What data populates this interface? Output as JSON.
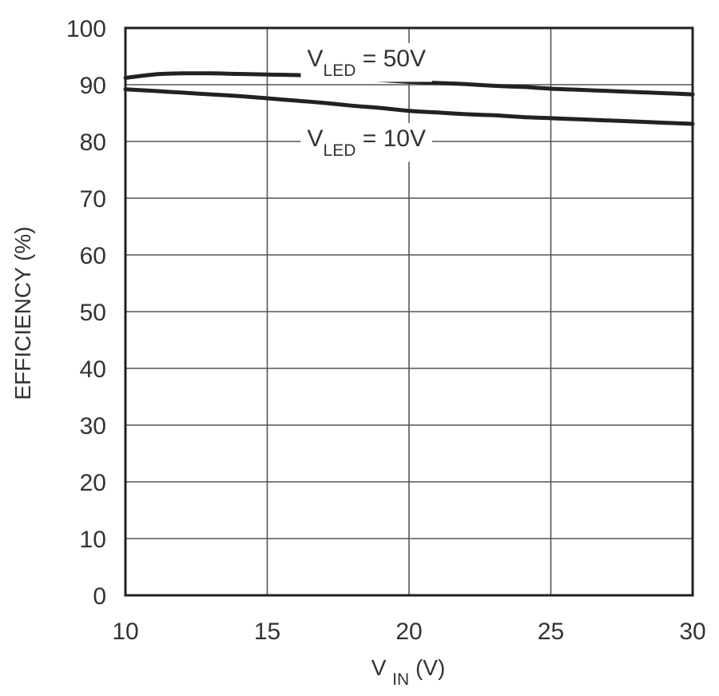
{
  "chart_data": {
    "type": "line",
    "title": "",
    "xlabel": {
      "main": "V",
      "sub": "IN",
      "suffix": " (V)"
    },
    "ylabel": "EFFICIENCY (%)",
    "xlim": [
      10,
      30
    ],
    "ylim": [
      0,
      100
    ],
    "x_ticks": [
      10,
      15,
      20,
      25,
      30
    ],
    "y_ticks": [
      0,
      10,
      20,
      30,
      40,
      50,
      60,
      70,
      80,
      90,
      100
    ],
    "grid": true,
    "legend": "none",
    "series": [
      {
        "x": [
          10,
          11,
          12,
          13,
          14,
          15,
          16,
          17,
          18,
          19,
          20,
          21,
          22,
          23,
          24,
          25,
          26,
          27,
          28,
          29,
          30
        ],
        "y": [
          91.2,
          91.8,
          92.0,
          92.0,
          91.9,
          91.8,
          91.7,
          91.4,
          91.1,
          90.8,
          90.5,
          90.3,
          90.1,
          89.8,
          89.6,
          89.3,
          89.1,
          88.9,
          88.7,
          88.5,
          88.3
        ],
        "label": {
          "main": "V",
          "sub": "LED",
          "suffix": " = 50V"
        }
      },
      {
        "x": [
          10,
          11,
          12,
          13,
          14,
          15,
          16,
          17,
          18,
          19,
          20,
          21,
          22,
          23,
          24,
          25,
          26,
          27,
          28,
          29,
          30
        ],
        "y": [
          89.2,
          88.9,
          88.6,
          88.3,
          88.0,
          87.6,
          87.2,
          86.8,
          86.3,
          85.9,
          85.4,
          85.1,
          84.8,
          84.6,
          84.3,
          84.1,
          83.9,
          83.7,
          83.5,
          83.3,
          83.1
        ],
        "label": {
          "main": "V",
          "sub": "LED",
          "suffix": " = 10V"
        }
      }
    ],
    "colors": {
      "lines": "#222222",
      "grid": "#555555",
      "text": "#333333",
      "background": "#ffffff"
    }
  }
}
